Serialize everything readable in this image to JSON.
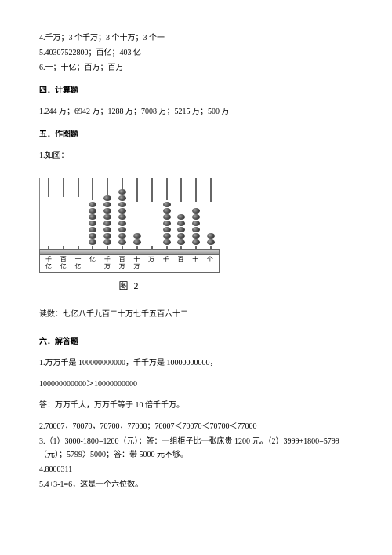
{
  "intro": {
    "line4": "4.千万；3 个千万；3 个十万；3 个一",
    "line5": "5.40307522800；百亿；403 亿",
    "line6": "6.十；十亿；百万；百万"
  },
  "sec4": {
    "title": "四．计算题",
    "a1": "1.244 万；6942 万；1288 万；7008 万；5215 万；500 万"
  },
  "sec5": {
    "title": "五．作图题",
    "a1": "1.如图："
  },
  "abacus": {
    "rod_color": "#666666",
    "base_gradient_top": "#dddddd",
    "base_gradient_bottom": "#888888",
    "column_area_height": 90,
    "columns": [
      {
        "label": "千亿",
        "beads": 0,
        "rod": 24
      },
      {
        "label": "百亿",
        "beads": 0,
        "rod": 24
      },
      {
        "label": "十亿",
        "beads": 0,
        "rod": 24
      },
      {
        "label": "亿",
        "beads": 7,
        "rod": 28
      },
      {
        "label": "千万",
        "beads": 8,
        "rod": 22
      },
      {
        "label": "百万",
        "beads": 9,
        "rod": 16
      },
      {
        "label": "十万",
        "beads": 2,
        "rod": 30
      },
      {
        "label": "万",
        "beads": 0,
        "rod": 30
      },
      {
        "label": "千",
        "beads": 7,
        "rod": 28
      },
      {
        "label": "百",
        "beads": 5,
        "rod": 30
      },
      {
        "label": "十",
        "beads": 6,
        "rod": 30
      },
      {
        "label": "个",
        "beads": 2,
        "rod": 30
      }
    ],
    "caption": "图 2",
    "reading": "读数：七亿八千九百二十万七千五百六十二"
  },
  "sec6": {
    "title": "六．解答题",
    "a1a": "1.万万千是 100000000000，千千万是 10000000000，",
    "a1b": "100000000000＞10000000000",
    "a1c": "答：万万千大，万万千等于 10 倍千千万。",
    "a2": "2.70007，70070，70700，77000；70007＜70070＜70700＜77000",
    "a3": "3.（1）3000-1800=1200（元）；答：一组柜子比一张床贵 1200 元。（2）3999+1800=5799（元）；5799〉5000；答：带 5000 元不够。",
    "a4": "4.8000311",
    "a5": "5.4+3-1=6，这是一个六位数。"
  }
}
